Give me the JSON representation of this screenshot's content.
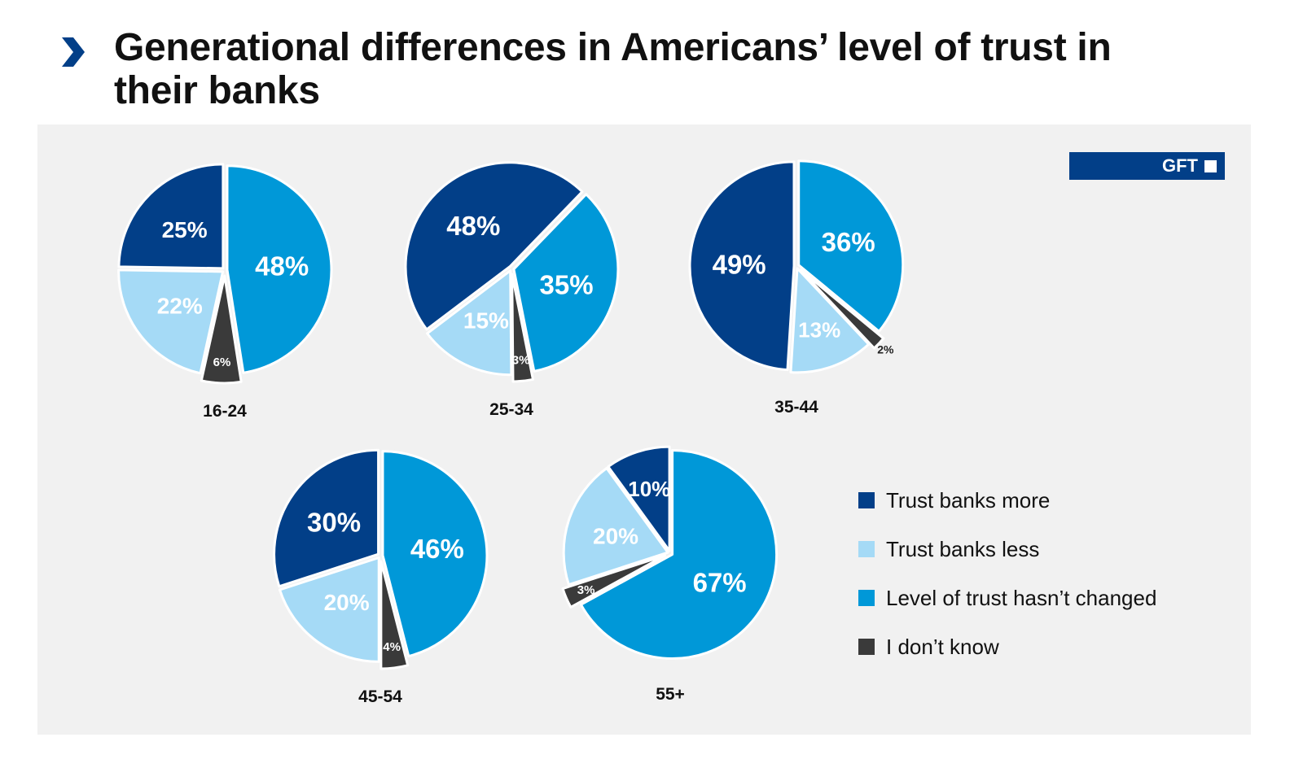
{
  "header": {
    "title": "Generational differences in Americans’ level of trust in their banks",
    "chevron_icon": "chevron-right-icon"
  },
  "badge": {
    "label": "GFT"
  },
  "chart_data": {
    "type": "pie",
    "title": "Generational differences in Americans’ level of trust in their banks",
    "series_names": [
      "Trust banks more",
      "Trust banks less",
      "Level of trust hasn’t changed",
      "I don’t know"
    ],
    "colors": {
      "Trust banks more": "#023f88",
      "Trust banks less": "#a5daf6",
      "Level of trust hasn’t changed": "#0098d8",
      "I don’t know": "#3a3a3a"
    },
    "legend_position": "right",
    "pies": [
      {
        "category": "16-24",
        "values": {
          "Level of trust hasn’t changed": 48,
          "I don’t know": 6,
          "Trust banks less": 22,
          "Trust banks more": 25
        }
      },
      {
        "category": "25-34",
        "values": {
          "Level of trust hasn’t changed": 35,
          "I don’t know": 3,
          "Trust banks less": 15,
          "Trust banks more": 48
        }
      },
      {
        "category": "35-44",
        "values": {
          "Level of trust hasn’t changed": 36,
          "I don’t know": 2,
          "Trust banks less": 13,
          "Trust banks more": 49
        }
      },
      {
        "category": "45-54",
        "values": {
          "Level of trust hasn’t changed": 46,
          "I don’t know": 4,
          "Trust banks less": 20,
          "Trust banks more": 30
        }
      },
      {
        "category": "55+",
        "values": {
          "Level of trust hasn’t changed": 67,
          "I don’t know": 3,
          "Trust banks less": 20,
          "Trust banks more": 10
        }
      }
    ]
  }
}
